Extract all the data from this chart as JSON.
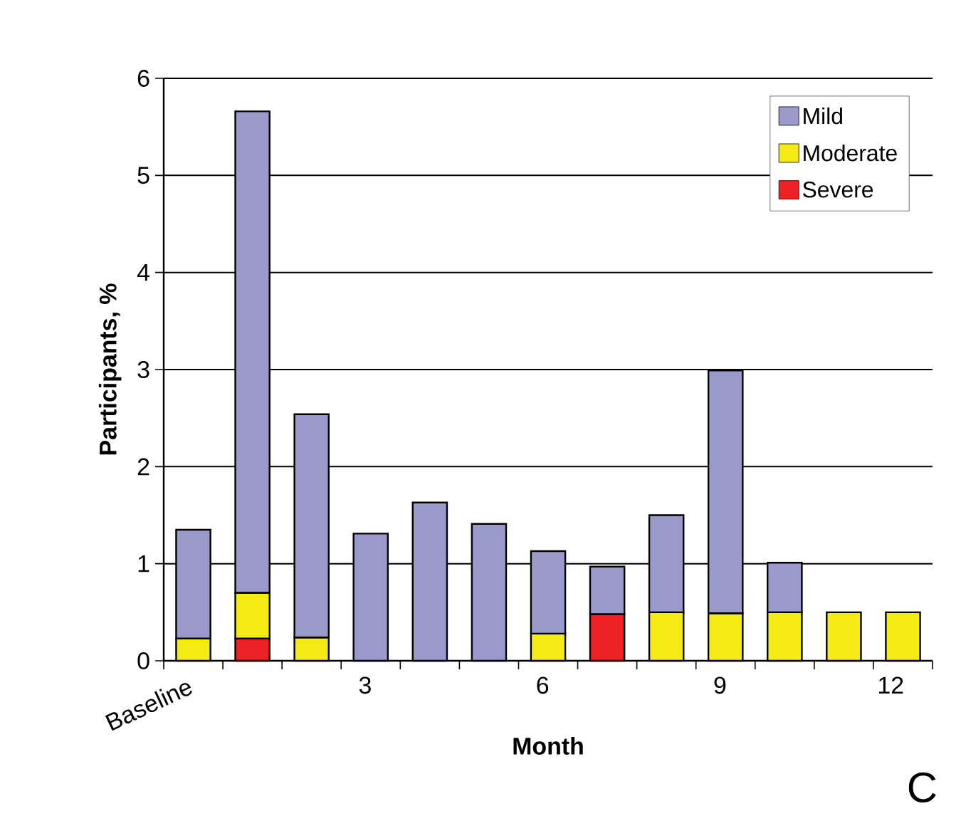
{
  "chart_data": {
    "type": "bar",
    "stacked": true,
    "xlabel": "Month",
    "ylabel": "Participants, %",
    "categories": [
      "Baseline",
      null,
      null,
      "3",
      null,
      null,
      "6",
      null,
      null,
      "9",
      null,
      null,
      "12"
    ],
    "series": [
      {
        "name": "Severe",
        "color": "#ee2224",
        "values": [
          null,
          0.23,
          null,
          null,
          null,
          null,
          null,
          0.48,
          null,
          null,
          null,
          null,
          null
        ]
      },
      {
        "name": "Moderate",
        "color": "#f5eb14",
        "values": [
          0.23,
          0.47,
          0.24,
          null,
          null,
          null,
          0.28,
          null,
          0.5,
          0.49,
          0.5,
          0.5,
          0.5
        ]
      },
      {
        "name": "Mild",
        "color": "#9999cc",
        "values": [
          1.12,
          4.96,
          2.3,
          1.31,
          1.63,
          1.41,
          0.85,
          0.49,
          1.0,
          2.5,
          0.51,
          null,
          null
        ]
      }
    ],
    "ylim": [
      0,
      6
    ],
    "yticks": [
      0,
      1,
      2,
      3,
      4,
      5,
      6
    ],
    "grid": "y",
    "legend": "top right",
    "annotations": [
      "C"
    ]
  }
}
